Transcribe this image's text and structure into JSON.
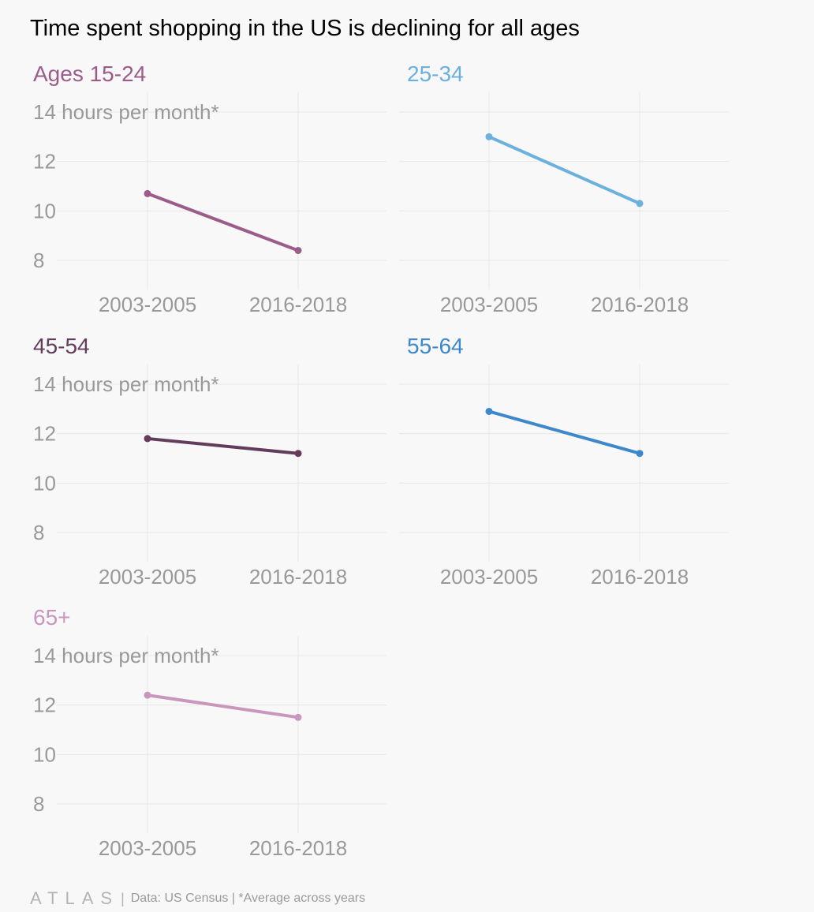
{
  "title": "Time spent shopping in the US is declining for all ages",
  "footer": {
    "logo": "ATLAS",
    "data_label": "Data:",
    "source": "US Census",
    "note": "*Average across years"
  },
  "colors": {
    "background": "#f8f8f8",
    "grid": "#e8e8e8",
    "axis_text": "#999999",
    "ages_15_24": "#9c5c8a",
    "ages_25_34": "#6cb0de",
    "ages_45_54": "#633c5c",
    "ages_55_64": "#3d87cc",
    "ages_65_plus": "#c996be"
  },
  "chart_data": [
    {
      "type": "line",
      "panel_title": "Ages 15-24",
      "ylabel": "hours per month*",
      "categories": [
        "2003-2005",
        "2016-2018"
      ],
      "values": [
        10.7,
        8.4
      ],
      "yticks": [
        8,
        10,
        12,
        14
      ],
      "ylim": [
        7.2,
        14.6
      ],
      "grid": true,
      "color": "#9c5c8a"
    },
    {
      "type": "line",
      "panel_title": "25-34",
      "ylabel": "",
      "categories": [
        "2003-2005",
        "2016-2018"
      ],
      "values": [
        13.0,
        10.3
      ],
      "yticks": [
        8,
        10,
        12,
        14
      ],
      "ylim": [
        7.2,
        14.6
      ],
      "grid": true,
      "color": "#6cb0de"
    },
    {
      "type": "line",
      "panel_title": "45-54",
      "ylabel": "hours per month*",
      "categories": [
        "2003-2005",
        "2016-2018"
      ],
      "values": [
        11.8,
        11.2
      ],
      "yticks": [
        8,
        10,
        12,
        14
      ],
      "ylim": [
        7.2,
        14.6
      ],
      "grid": true,
      "color": "#633c5c"
    },
    {
      "type": "line",
      "panel_title": "55-64",
      "ylabel": "",
      "categories": [
        "2003-2005",
        "2016-2018"
      ],
      "values": [
        12.9,
        11.2
      ],
      "yticks": [
        8,
        10,
        12,
        14
      ],
      "ylim": [
        7.2,
        14.6
      ],
      "grid": true,
      "color": "#3d87cc"
    },
    {
      "type": "line",
      "panel_title": "65+",
      "ylabel": "hours per month*",
      "categories": [
        "2003-2005",
        "2016-2018"
      ],
      "values": [
        12.4,
        11.5
      ],
      "yticks": [
        8,
        10,
        12,
        14
      ],
      "ylim": [
        7.2,
        14.6
      ],
      "grid": true,
      "color": "#c996be"
    }
  ]
}
